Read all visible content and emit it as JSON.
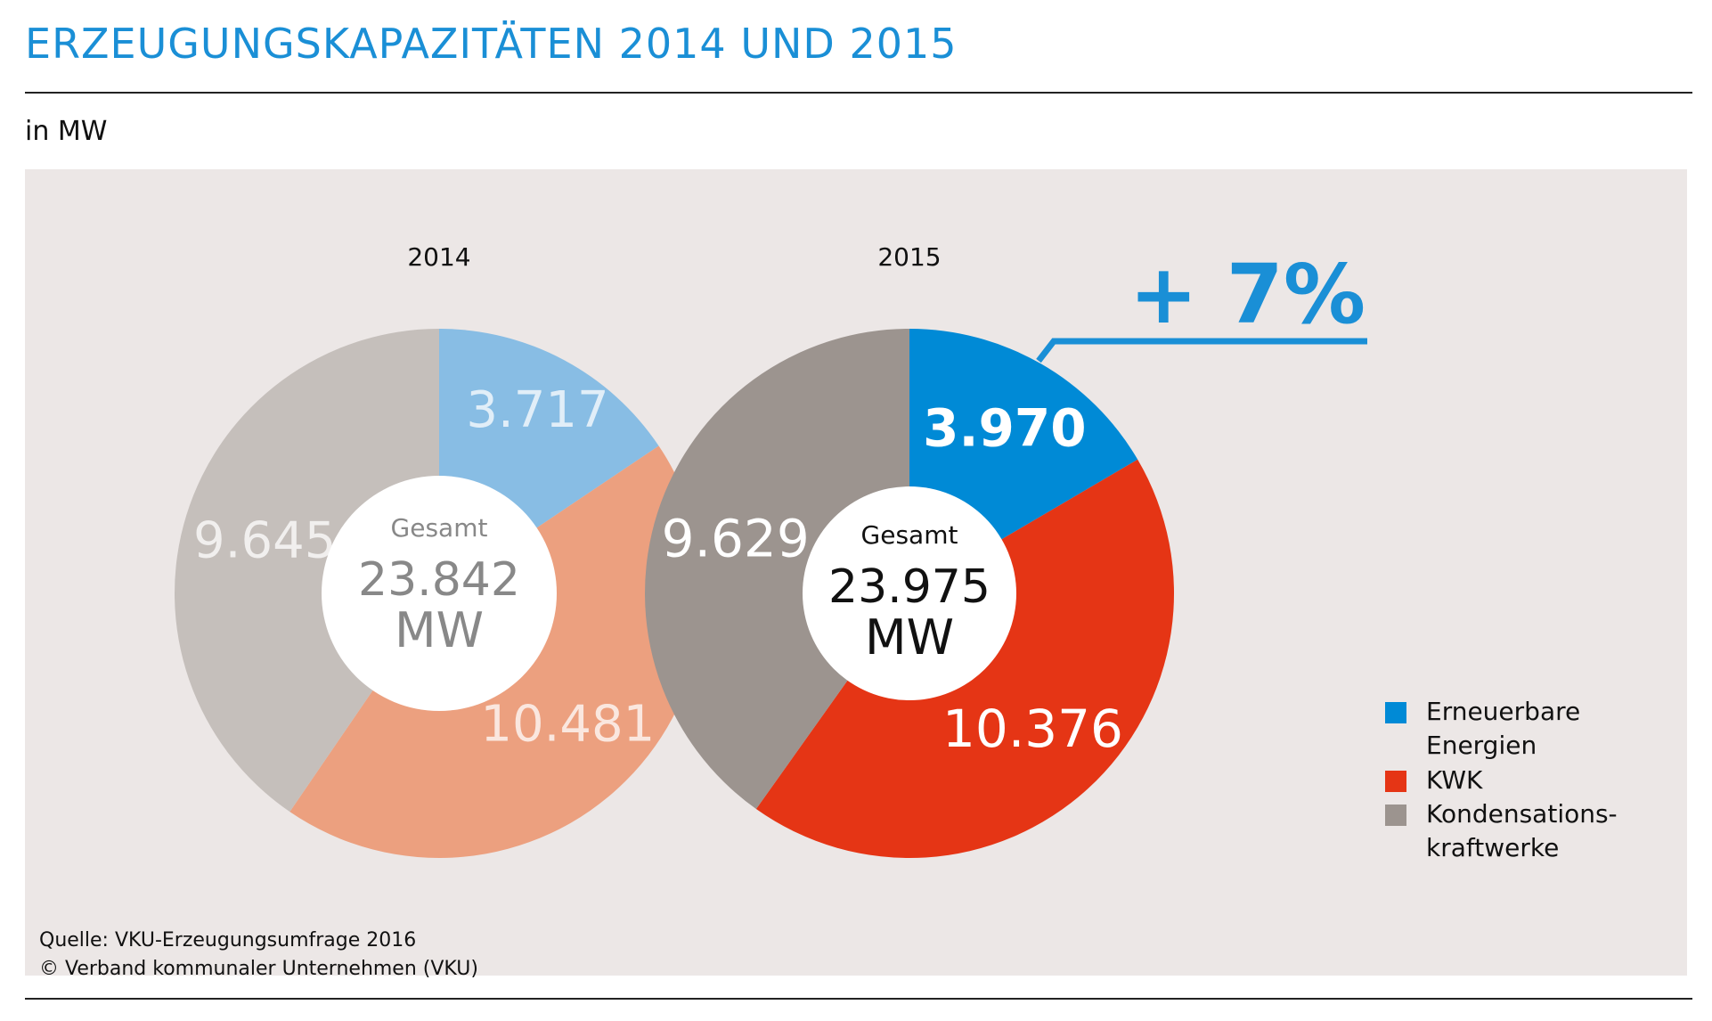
{
  "title": "ERZEUGUNGSKAPAZITÄTEN 2014 UND 2015",
  "subtitle": "in MW",
  "change_label": "+ 7%",
  "total_label": "Gesamt",
  "source_lines": [
    "Quelle: VKU-Erzeugungsumfrage 2016",
    "© Verband kommunaler Unternehmen (VKU)"
  ],
  "colors": {
    "title": "#1a8fd6",
    "panel_bg": "#ece7e6",
    "erneuerbare_2015": "#008ad6",
    "kwk_2015": "#e53515",
    "kondensation_2015": "#9c948f",
    "erneuerbare_2014": "#88bde4",
    "kwk_2014": "#eca07f",
    "kondensation_2014": "#c5bfbb"
  },
  "legend": [
    {
      "label": "Erneuerbare Energien",
      "color": "#008ad6"
    },
    {
      "label": "KWK",
      "color": "#e53515"
    },
    {
      "label": "Kondensations-kraftwerke",
      "color": "#9c948f"
    }
  ],
  "chart_data": [
    {
      "type": "pie",
      "title": "2014",
      "total_value": "23.842",
      "total_unit": "MW",
      "categories": [
        "Erneuerbare Energien",
        "KWK",
        "Kondensationskraftwerke"
      ],
      "values": [
        3717,
        10481,
        9645
      ],
      "value_labels": [
        "3.717",
        "10.481",
        "9.645"
      ],
      "colors": [
        "#88bde4",
        "#eca07f",
        "#c5bfbb"
      ]
    },
    {
      "type": "pie",
      "title": "2015",
      "total_value": "23.975",
      "total_unit": "MW",
      "categories": [
        "Erneuerbare Energien",
        "KWK",
        "Kondensationskraftwerke"
      ],
      "values": [
        3970,
        10376,
        9629
      ],
      "value_labels": [
        "3.970",
        "10.376",
        "9.629"
      ],
      "colors": [
        "#008ad6",
        "#e53515",
        "#9c948f"
      ]
    }
  ]
}
